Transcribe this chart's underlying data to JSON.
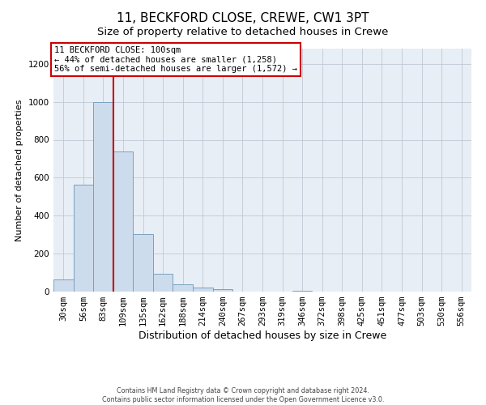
{
  "title_line1": "11, BECKFORD CLOSE, CREWE, CW1 3PT",
  "title_line2": "Size of property relative to detached houses in Crewe",
  "xlabel": "Distribution of detached houses by size in Crewe",
  "ylabel": "Number of detached properties",
  "bar_labels": [
    "30sqm",
    "56sqm",
    "83sqm",
    "109sqm",
    "135sqm",
    "162sqm",
    "188sqm",
    "214sqm",
    "240sqm",
    "267sqm",
    "293sqm",
    "319sqm",
    "346sqm",
    "372sqm",
    "398sqm",
    "425sqm",
    "451sqm",
    "477sqm",
    "503sqm",
    "530sqm",
    "556sqm"
  ],
  "bar_heights": [
    65,
    565,
    1000,
    740,
    305,
    93,
    40,
    20,
    12,
    0,
    0,
    0,
    5,
    0,
    0,
    0,
    0,
    0,
    0,
    0,
    0
  ],
  "bar_color": "#cddcec",
  "bar_edge_color": "#7aa0c0",
  "vline_index": 3,
  "vline_color": "#cc0000",
  "annotation_text": "11 BECKFORD CLOSE: 100sqm\n← 44% of detached houses are smaller (1,258)\n56% of semi-detached houses are larger (1,572) →",
  "annotation_box_edge": "#cc0000",
  "annotation_box_fill": "#ffffff",
  "ylim": [
    0,
    1280
  ],
  "yticks": [
    0,
    200,
    400,
    600,
    800,
    1000,
    1200
  ],
  "footer_line1": "Contains HM Land Registry data © Crown copyright and database right 2024.",
  "footer_line2": "Contains public sector information licensed under the Open Government Licence v3.0.",
  "background_color": "#ffffff",
  "plot_background": "#e8eef5",
  "grid_color": "#c0c8d4",
  "title_fontsize": 11,
  "subtitle_fontsize": 9.5,
  "xlabel_fontsize": 9,
  "ylabel_fontsize": 8,
  "tick_fontsize": 7.5,
  "footer_fontsize": 5.8
}
